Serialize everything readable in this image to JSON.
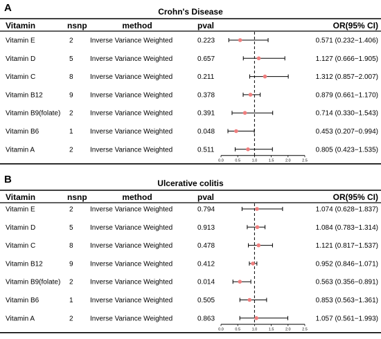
{
  "headers": {
    "vitamin": "Vitamin",
    "nsnp": "nsnp",
    "method": "method",
    "pval": "pval",
    "or": "OR(95% CI)"
  },
  "chart_data": [
    {
      "type": "forest",
      "panel_label": "A",
      "title": "Crohn's Disease",
      "xlim": [
        0,
        2.5
      ],
      "xticks": [
        "0.0",
        "0.5",
        "1.0",
        "1.5",
        "2.0",
        "2.5"
      ],
      "reference_line": 1.0,
      "rows": [
        {
          "vitamin": "Vitamin E",
          "nsnp": "2",
          "method": "Inverse Variance Weighted",
          "pval": "0.223",
          "or": 0.571,
          "lo": 0.232,
          "hi": 1.406,
          "or_text": "0.571 (0.232−1.406)"
        },
        {
          "vitamin": "Vitamin D",
          "nsnp": "5",
          "method": "Inverse Variance Weighted",
          "pval": "0.657",
          "or": 1.127,
          "lo": 0.666,
          "hi": 1.905,
          "or_text": "1.127 (0.666−1.905)"
        },
        {
          "vitamin": "Vitamin C",
          "nsnp": "8",
          "method": "Inverse Variance Weighted",
          "pval": "0.211",
          "or": 1.312,
          "lo": 0.857,
          "hi": 2.007,
          "or_text": "1.312 (0.857−2.007)"
        },
        {
          "vitamin": "Vitamin B12",
          "nsnp": "9",
          "method": "Inverse Variance Weighted",
          "pval": "0.378",
          "or": 0.879,
          "lo": 0.661,
          "hi": 1.17,
          "or_text": "0.879 (0.661−1.170)"
        },
        {
          "vitamin": "Vitamin B9(folate)",
          "nsnp": "2",
          "method": "Inverse Variance Weighted",
          "pval": "0.391",
          "or": 0.714,
          "lo": 0.33,
          "hi": 1.543,
          "or_text": "0.714 (0.330−1.543)"
        },
        {
          "vitamin": "Vitamin B6",
          "nsnp": "1",
          "method": "Inverse Variance Weighted",
          "pval": "0.048",
          "or": 0.453,
          "lo": 0.207,
          "hi": 0.994,
          "or_text": "0.453 (0.207−0.994)"
        },
        {
          "vitamin": "Vitamin A",
          "nsnp": "2",
          "method": "Inverse Variance Weighted",
          "pval": "0.511",
          "or": 0.805,
          "lo": 0.423,
          "hi": 1.535,
          "or_text": "0.805 (0.423−1.535)"
        }
      ]
    },
    {
      "type": "forest",
      "panel_label": "B",
      "title": "Ulcerative colitis",
      "xlim": [
        0,
        2.5
      ],
      "xticks": [
        "0.0",
        "0.5",
        "1.0",
        "1.5",
        "2.0",
        "2.5"
      ],
      "reference_line": 1.0,
      "rows": [
        {
          "vitamin": "Vitamin E",
          "nsnp": "2",
          "method": "Inverse Variance Weighted",
          "pval": "0.794",
          "or": 1.074,
          "lo": 0.628,
          "hi": 1.837,
          "or_text": "1.074 (0.628−1.837)"
        },
        {
          "vitamin": "Vitamin D",
          "nsnp": "5",
          "method": "Inverse Variance Weighted",
          "pval": "0.913",
          "or": 1.084,
          "lo": 0.783,
          "hi": 1.314,
          "or_text": "1.084 (0.783−1.314)"
        },
        {
          "vitamin": "Vitamin C",
          "nsnp": "8",
          "method": "Inverse Variance Weighted",
          "pval": "0.478",
          "or": 1.121,
          "lo": 0.817,
          "hi": 1.537,
          "or_text": "1.121 (0.817−1.537)"
        },
        {
          "vitamin": "Vitamin B12",
          "nsnp": "9",
          "method": "Inverse Variance Weighted",
          "pval": "0.412",
          "or": 0.952,
          "lo": 0.846,
          "hi": 1.071,
          "or_text": "0.952 (0.846−1.071)"
        },
        {
          "vitamin": "Vitamin B9(folate)",
          "nsnp": "2",
          "method": "Inverse Variance Weighted",
          "pval": "0.014",
          "or": 0.563,
          "lo": 0.356,
          "hi": 0.891,
          "or_text": "0.563 (0.356−0.891)"
        },
        {
          "vitamin": "Vitamin B6",
          "nsnp": "1",
          "method": "Inverse Variance Weighted",
          "pval": "0.505",
          "or": 0.853,
          "lo": 0.563,
          "hi": 1.361,
          "or_text": "0.853 (0.563−1.361)"
        },
        {
          "vitamin": "Vitamin A",
          "nsnp": "2",
          "method": "Inverse Variance Weighted",
          "pval": "0.863",
          "or": 1.057,
          "lo": 0.561,
          "hi": 1.993,
          "or_text": "1.057 (0.561−1.993)"
        }
      ]
    }
  ]
}
